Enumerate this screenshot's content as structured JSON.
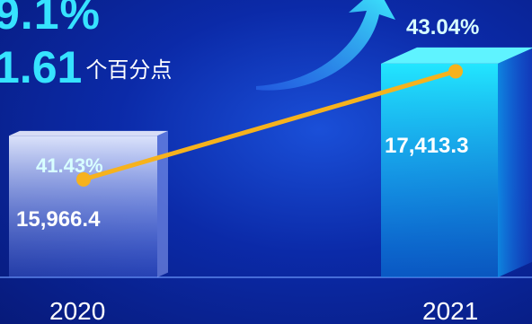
{
  "headline": {
    "line1": "9.1%",
    "line2_value": "1.61",
    "line2_unit": "个百分点"
  },
  "colors": {
    "bar2020": "#c9d6ff",
    "bar2021": "#19d9f7",
    "line": "#f6b21d",
    "arrow": "#26d4ff"
  },
  "chart_data": {
    "type": "bar",
    "categories": [
      "2020",
      "2021"
    ],
    "series": [
      {
        "values": [
          15966.4,
          17413.3
        ],
        "labels": [
          "15,966.4",
          "17,413.3"
        ]
      },
      {
        "values": [
          41.43,
          43.04
        ],
        "labels": [
          "41.43%",
          "43.04%"
        ]
      }
    ],
    "title": "",
    "xlabel": "",
    "ylabel": ""
  }
}
